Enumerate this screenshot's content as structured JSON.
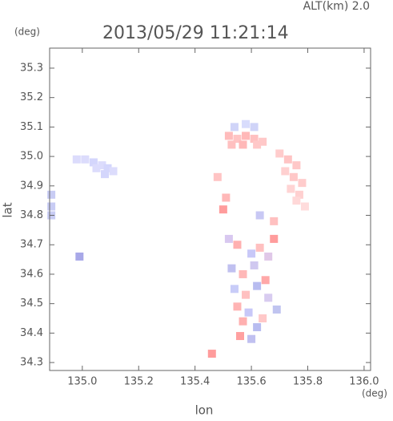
{
  "chart_data": {
    "type": "scatter",
    "title": "2013/05/29 11:21:14",
    "subtitle": "ALT(km) 2.0",
    "y_unit": "(deg)",
    "x_unit": "(deg)",
    "xlabel": "lon",
    "ylabel": "lat",
    "xlim": [
      134.884,
      136.023
    ],
    "ylim": [
      34.273,
      35.368
    ],
    "xticks": [
      {
        "value": 135,
        "label": "135.0"
      },
      135.2,
      135.4,
      135.6,
      135.8,
      {
        "value": 136,
        "label": "136.0"
      }
    ],
    "yticks": [
      34.3,
      34.4,
      34.5,
      34.6,
      34.7,
      34.8,
      34.9,
      {
        "value": 35,
        "label": "35.0"
      },
      35.1,
      35.2,
      35.3
    ],
    "x": [
      134.98,
      135.01,
      135.04,
      135.07,
      135.09,
      135.11,
      135.05,
      135.08,
      134.89,
      134.89,
      134.89,
      134.99,
      135.54,
      135.58,
      135.61,
      135.52,
      135.55,
      135.58,
      135.61,
      135.64,
      135.53,
      135.57,
      135.62,
      135.48,
      135.7,
      135.73,
      135.76,
      135.72,
      135.75,
      135.78,
      135.74,
      135.77,
      135.76,
      135.79,
      135.52,
      135.55,
      135.6,
      135.63,
      135.66,
      135.68,
      135.53,
      135.57,
      135.61,
      135.65,
      135.54,
      135.58,
      135.62,
      135.55,
      135.59,
      135.64,
      135.69,
      135.57,
      135.62,
      135.56,
      135.6,
      135.66,
      135.46,
      135.51,
      135.68,
      135.5,
      135.63
    ],
    "y": [
      34.99,
      34.99,
      34.98,
      34.97,
      34.96,
      34.95,
      34.96,
      34.94,
      34.87,
      34.83,
      34.8,
      34.66,
      35.1,
      35.11,
      35.1,
      35.07,
      35.06,
      35.07,
      35.06,
      35.05,
      35.04,
      35.04,
      35.04,
      34.93,
      35.01,
      34.99,
      34.97,
      34.95,
      34.93,
      34.91,
      34.89,
      34.87,
      34.85,
      34.83,
      34.72,
      34.7,
      34.67,
      34.69,
      34.66,
      34.72,
      34.62,
      34.6,
      34.63,
      34.58,
      34.55,
      34.53,
      34.56,
      34.49,
      34.47,
      34.45,
      34.48,
      34.44,
      34.42,
      34.39,
      34.38,
      34.52,
      34.33,
      34.86,
      34.78,
      34.82,
      34.8
    ],
    "colors": [
      "#dcdcfc",
      "#dcdcfc",
      "#d4d6fc",
      "#dcdcfc",
      "#d4d6fc",
      "#dcdcfc",
      "#dcdcfc",
      "#d4d6fc",
      "#c8ccf4",
      "#c8ccf4",
      "#c8ccf4",
      "#a8a8e8",
      "#d0d4f8",
      "#d8dcfc",
      "#d0d4f8",
      "#ffbcbc",
      "#ffc4c4",
      "#ffb8b8",
      "#ffc0c0",
      "#ffc8c8",
      "#ffc0c0",
      "#ffb8b8",
      "#ffc8c8",
      "#ffc4c4",
      "#ffcccc",
      "#ffc4c4",
      "#ffc8c8",
      "#ffd0d0",
      "#ffc8c8",
      "#ffcccc",
      "#ffd4d4",
      "#ffd0d0",
      "#ffd8d8",
      "#ffdcdc",
      "#d8c8f0",
      "#ffb0b0",
      "#c8c8f8",
      "#ffc0c0",
      "#e0c8e8",
      "#ff9c9c",
      "#c0c0f0",
      "#ffb8b8",
      "#d0c8f0",
      "#ffa8a8",
      "#c8ccf8",
      "#ffc0c0",
      "#b8bcf0",
      "#ffb4b4",
      "#c8c8f8",
      "#ffc8c8",
      "#c0c4f0",
      "#ffb0b0",
      "#b8bcf0",
      "#ffa0a0",
      "#c0c0f0",
      "#d8ccf0",
      "#ff9c9c",
      "#ffb8b8",
      "#ffc0c0",
      "#ff9c9c",
      "#c8c8f4"
    ]
  }
}
